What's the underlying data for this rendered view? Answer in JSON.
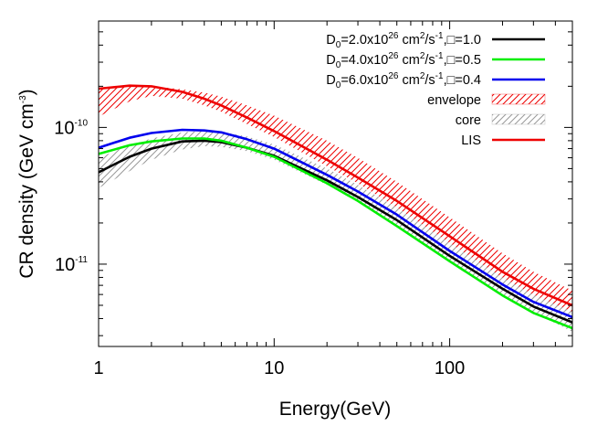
{
  "chart_data": {
    "type": "line",
    "xlabel": "Energy(GeV)",
    "ylabel_main": "CR density (GeV cm",
    "ylabel_sup": "-3",
    "ylabel_close": ")",
    "xscale": "log",
    "yscale": "log",
    "xlim": [
      1,
      500
    ],
    "ylim": [
      2.5e-12,
      6e-10
    ],
    "x_ticks": [
      {
        "value": 1,
        "label": "1"
      },
      {
        "value": 10,
        "label": "10"
      },
      {
        "value": 100,
        "label": "100"
      }
    ],
    "y_ticks": [
      {
        "value": 1e-10,
        "base": "10",
        "exp": "-10"
      },
      {
        "value": 1e-11,
        "base": "10",
        "exp": "-11"
      }
    ],
    "grid": false,
    "legend_position": "top-right",
    "series": [
      {
        "name_parts": [
          "D",
          "0",
          "=2.0x10",
          "26",
          " cm",
          "2",
          "/s",
          "-1",
          ",",
          "□",
          "=1.0"
        ],
        "color": "#000000",
        "x": [
          1,
          1.5,
          2,
          3,
          4,
          5,
          7,
          10,
          20,
          30,
          50,
          100,
          200,
          300,
          500
        ],
        "y": [
          4.7e-11,
          6.1e-11,
          7e-11,
          7.9e-11,
          8e-11,
          7.8e-11,
          7.1e-11,
          6.2e-11,
          4.1e-11,
          3.1e-11,
          2.1e-11,
          1.15e-11,
          6.6e-12,
          4.9e-12,
          3.75e-12
        ]
      },
      {
        "name_parts": [
          "D",
          "0",
          "=4.0x10",
          "26",
          " cm",
          "2",
          "/s",
          "-1",
          ",",
          "□",
          "=0.5"
        ],
        "color": "#00ee00",
        "x": [
          1,
          1.5,
          2,
          3,
          4,
          5,
          7,
          10,
          20,
          30,
          50,
          100,
          200,
          300,
          500
        ],
        "y": [
          6.4e-11,
          7.4e-11,
          7.9e-11,
          8.3e-11,
          8.3e-11,
          8e-11,
          7.1e-11,
          6.1e-11,
          3.9e-11,
          2.9e-11,
          1.9e-11,
          1.05e-11,
          5.9e-12,
          4.4e-12,
          3.4e-12
        ]
      },
      {
        "name_parts": [
          "D",
          "0",
          "=6.0x10",
          "26",
          " cm",
          "2",
          "/s",
          "-1",
          ",",
          "□",
          "=0.4"
        ],
        "color": "#0000ee",
        "x": [
          1,
          1.5,
          2,
          3,
          4,
          5,
          7,
          10,
          20,
          30,
          50,
          100,
          200,
          300,
          500
        ],
        "y": [
          7.1e-11,
          8.4e-11,
          9.1e-11,
          9.6e-11,
          9.5e-11,
          9.2e-11,
          8.2e-11,
          7e-11,
          4.5e-11,
          3.4e-11,
          2.3e-11,
          1.25e-11,
          7.1e-12,
          5.3e-12,
          4.1e-12
        ]
      },
      {
        "name_parts": [
          "LIS"
        ],
        "color": "#ee0000",
        "x": [
          1,
          1.5,
          2,
          3,
          4,
          5,
          7,
          10,
          20,
          30,
          50,
          100,
          200,
          300,
          500
        ],
        "y": [
          1.92e-10,
          2.02e-10,
          2e-10,
          1.82e-10,
          1.62e-10,
          1.45e-10,
          1.18e-10,
          9.4e-11,
          5.8e-11,
          4.3e-11,
          2.9e-11,
          1.6e-11,
          8.8e-12,
          6.6e-12,
          5e-12
        ]
      }
    ],
    "bands": [
      {
        "name": "envelope",
        "color": "#ee0000",
        "x": [
          1,
          1.5,
          2,
          3,
          4,
          5,
          7,
          10,
          20,
          30,
          50,
          100,
          200,
          300,
          500
        ],
        "y_low": [
          1.2e-10,
          1.55e-10,
          1.7e-10,
          1.62e-10,
          1.45e-10,
          1.3e-10,
          1.06e-10,
          8.5e-11,
          5.2e-11,
          3.9e-11,
          2.6e-11,
          1.43e-11,
          7.9e-12,
          5.9e-12,
          4.4e-12
        ],
        "y_high": [
          1.92e-10,
          2.02e-10,
          2e-10,
          1.9e-10,
          1.8e-10,
          1.68e-10,
          1.45e-10,
          1.22e-10,
          8e-11,
          6e-11,
          4e-11,
          2.2e-11,
          1.2e-11,
          8.8e-12,
          6.4e-12
        ]
      },
      {
        "name": "core",
        "color": "#999999",
        "x": [
          1,
          1.5,
          2,
          3,
          4,
          5,
          7,
          10,
          20,
          30,
          50,
          100,
          200,
          300,
          500
        ],
        "y_low": [
          3.6e-11,
          4.8e-11,
          5.8e-11,
          6.9e-11,
          7.3e-11,
          7.2e-11,
          6.7e-11,
          5.8e-11,
          3.8e-11,
          2.85e-11,
          1.9e-11,
          1.05e-11,
          6e-12,
          4.45e-12,
          3.2e-12
        ],
        "y_high": [
          6e-11,
          7.4e-11,
          8.3e-11,
          9.2e-11,
          9.4e-11,
          9.3e-11,
          8.6e-11,
          7.5e-11,
          5e-11,
          3.8e-11,
          2.6e-11,
          1.43e-11,
          8e-12,
          6e-12,
          4.5e-12
        ]
      }
    ]
  }
}
